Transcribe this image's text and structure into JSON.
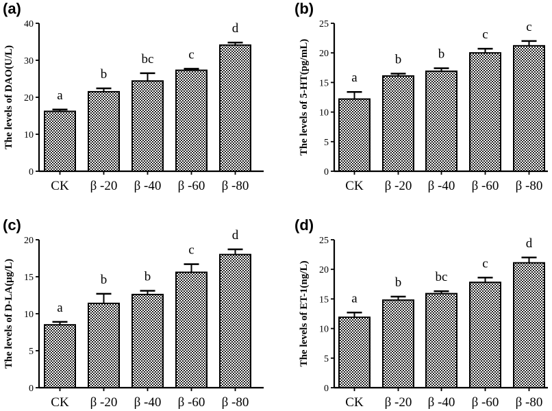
{
  "chart_data": [
    {
      "type": "bar",
      "panel": "(a)",
      "ylabel": "The levels of DAO(U/L)",
      "categories": [
        "CK",
        "β -20",
        "β -40",
        "β -60",
        "β -80"
      ],
      "values": [
        16.2,
        21.5,
        24.4,
        27.3,
        34.1
      ],
      "errors": [
        0.5,
        0.9,
        2.1,
        0.4,
        0.7
      ],
      "significance": [
        "a",
        "b",
        "bc",
        "c",
        "d"
      ],
      "ylim": [
        0,
        40
      ],
      "yticks": [
        0,
        10,
        20,
        30,
        40
      ]
    },
    {
      "type": "bar",
      "panel": "(b)",
      "ylabel": "The levels of 5-HT(pg/mL)",
      "categories": [
        "CK",
        "β -20",
        "β -40",
        "β -60",
        "β -80"
      ],
      "values": [
        12.2,
        16.1,
        16.9,
        20.0,
        21.2
      ],
      "errors": [
        1.2,
        0.4,
        0.5,
        0.7,
        0.8
      ],
      "significance": [
        "a",
        "b",
        "b",
        "c",
        "c"
      ],
      "ylim": [
        0,
        25
      ],
      "yticks": [
        0,
        5,
        10,
        15,
        20,
        25
      ]
    },
    {
      "type": "bar",
      "panel": "(c)",
      "ylabel": "The levels of D-LA(μg/L)",
      "categories": [
        "CK",
        "β -20",
        "β -40",
        "β -60",
        "β -80"
      ],
      "values": [
        8.5,
        11.4,
        12.6,
        15.6,
        18.0
      ],
      "errors": [
        0.4,
        1.3,
        0.5,
        1.1,
        0.7
      ],
      "significance": [
        "a",
        "b",
        "b",
        "c",
        "d"
      ],
      "ylim": [
        0,
        20
      ],
      "yticks": [
        0,
        5,
        10,
        15,
        20
      ]
    },
    {
      "type": "bar",
      "panel": "(d)",
      "ylabel": "The levels of ET-1(ng/L)",
      "categories": [
        "CK",
        "β -20",
        "β -40",
        "β -60",
        "β -80"
      ],
      "values": [
        11.9,
        14.8,
        15.9,
        17.8,
        21.1
      ],
      "errors": [
        0.8,
        0.6,
        0.4,
        0.8,
        0.9
      ],
      "significance": [
        "a",
        "b",
        "bc",
        "c",
        "d"
      ],
      "ylim": [
        0,
        25
      ],
      "yticks": [
        0,
        5,
        10,
        15,
        20,
        25
      ]
    }
  ]
}
